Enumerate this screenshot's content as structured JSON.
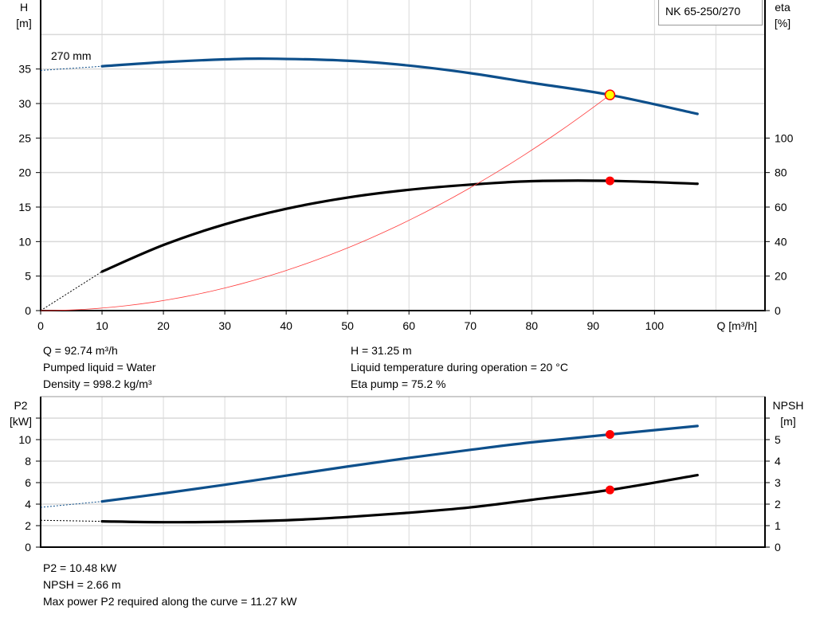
{
  "legend_label": "NK 65-250/270",
  "curve_label": "270 mm",
  "info_top": {
    "left": [
      "Q = 92.74 m³/h",
      "Pumped liquid = Water",
      "Density = 998.2 kg/m³"
    ],
    "right": [
      "H = 31.25 m",
      "Liquid temperature during operation = 20 °C",
      "Eta pump = 75.2 %"
    ]
  },
  "info_bottom": [
    "P2 = 10.48 kW",
    "NPSH = 2.66 m",
    "Max power P2 required along the curve = 11.27 kW"
  ],
  "colors": {
    "head": "#0d4f8b",
    "eta": "#000000",
    "system": "#ff3b3b",
    "point": "#ff0000",
    "duty_fill": "#ffff00",
    "grid": "#d9d9d9"
  },
  "chart_data": [
    {
      "type": "line",
      "xlabel": "Q [m³/h]",
      "ylabel": "H\n[m]",
      "ylabel_right": "eta\n[%]",
      "xlim": [
        0,
        118
      ],
      "ylim": [
        0,
        45
      ],
      "ylim_right": [
        0,
        180
      ],
      "xticks": [
        0,
        10,
        20,
        30,
        40,
        50,
        60,
        70,
        80,
        90,
        100
      ],
      "yticks": [
        0,
        5,
        10,
        15,
        20,
        25,
        30,
        35
      ],
      "yticks_right": [
        0,
        20,
        40,
        60,
        80,
        100
      ],
      "grid": true,
      "series": [
        {
          "name": "270 mm",
          "key": "head",
          "axis": "left",
          "x": [
            10,
            20,
            30,
            37,
            50,
            60,
            70,
            80,
            92.74,
            107
          ],
          "y": [
            35.4,
            36.0,
            36.4,
            36.5,
            36.2,
            35.5,
            34.4,
            33.0,
            31.25,
            28.5
          ],
          "extrapolated": {
            "x": [
              0,
              10
            ],
            "y": [
              34.8,
              35.4
            ]
          }
        },
        {
          "key": "eta",
          "axis": "right",
          "x": [
            10,
            20,
            30,
            40,
            50,
            60,
            70,
            80,
            92.74,
            107
          ],
          "y": [
            22.6,
            38,
            50,
            59,
            65.5,
            70,
            73,
            75,
            75.2,
            73.5
          ],
          "extrapolated": {
            "x": [
              0,
              10
            ],
            "y": [
              0,
              22.6
            ]
          }
        },
        {
          "key": "system",
          "axis": "left",
          "type": "quadratic-through-origin",
          "x": [
            0,
            92.74
          ],
          "y": [
            0,
            31.25
          ]
        }
      ],
      "duty_point": {
        "Q": 92.74,
        "H": 31.25,
        "eta": 75.2
      }
    },
    {
      "type": "line",
      "ylabel": "P2\n[kW]",
      "ylabel_right": "NPSH\n[m]",
      "xlim": [
        0,
        118
      ],
      "ylim": [
        0,
        14
      ],
      "ylim_right": [
        0,
        7
      ],
      "xticks": [
        0,
        10,
        20,
        30,
        40,
        50,
        60,
        70,
        80,
        90,
        100,
        110
      ],
      "yticks": [
        0,
        2,
        4,
        6,
        8,
        10
      ],
      "yticks_right": [
        0,
        1,
        2,
        3,
        4,
        5
      ],
      "grid": true,
      "series": [
        {
          "key": "p2",
          "axis": "left",
          "x": [
            10,
            20,
            30,
            40,
            50,
            60,
            70,
            80,
            92.74,
            107
          ],
          "y": [
            4.25,
            5.0,
            5.8,
            6.65,
            7.5,
            8.3,
            9.05,
            9.75,
            10.48,
            11.27
          ],
          "extrapolated": {
            "x": [
              0,
              10
            ],
            "y": [
              3.7,
              4.25
            ]
          }
        },
        {
          "key": "npsh",
          "axis": "right",
          "x": [
            10,
            20,
            30,
            40,
            50,
            60,
            70,
            80,
            92.74,
            107
          ],
          "y": [
            1.2,
            1.16,
            1.18,
            1.25,
            1.4,
            1.6,
            1.85,
            2.2,
            2.66,
            3.35
          ],
          "extrapolated": {
            "x": [
              0,
              10
            ],
            "y": [
              1.25,
              1.2
            ]
          }
        }
      ],
      "duty_point": {
        "Q": 92.74,
        "P2": 10.48,
        "NPSH": 2.66
      }
    }
  ]
}
